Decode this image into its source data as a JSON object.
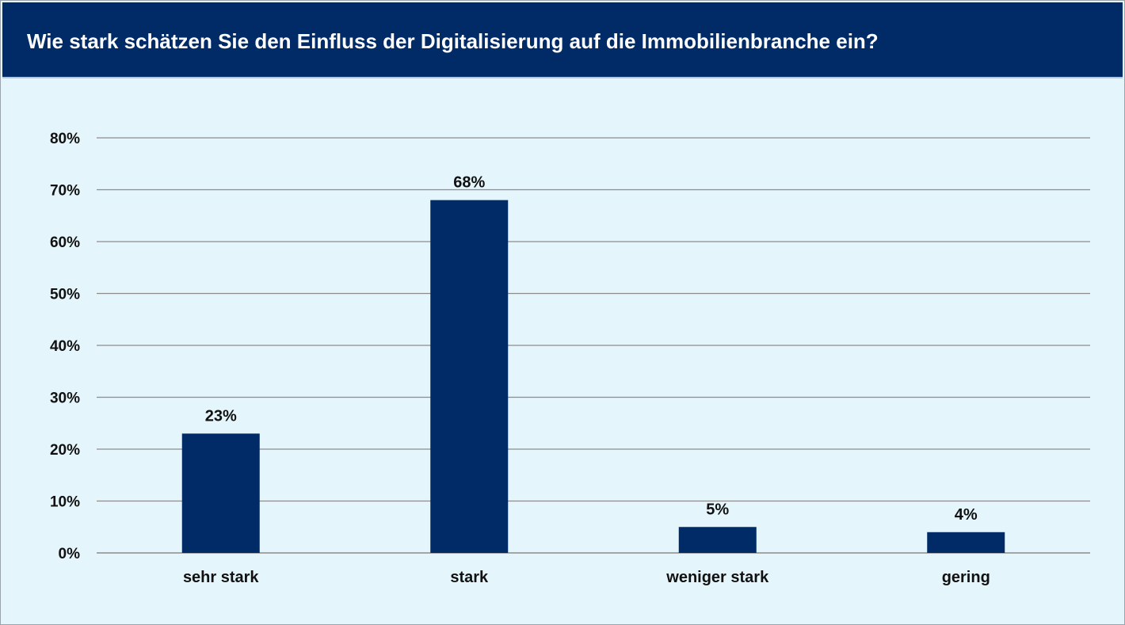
{
  "chart_data": {
    "type": "bar",
    "title": "Wie stark schätzen Sie den Einfluss der Digitalisierung auf die Immobilienbranche ein?",
    "categories": [
      "sehr stark",
      "stark",
      "weniger stark",
      "gering"
    ],
    "values": [
      23,
      68,
      5,
      4
    ],
    "value_labels": [
      "23%",
      "68%",
      "5%",
      "4%"
    ],
    "yticks": [
      0,
      10,
      20,
      30,
      40,
      50,
      60,
      70,
      80
    ],
    "ytick_labels": [
      "0%",
      "10%",
      "20%",
      "30%",
      "40%",
      "50%",
      "60%",
      "70%",
      "80%"
    ],
    "ylim": [
      0,
      80
    ],
    "grid": true,
    "legend": "none",
    "xlabel": "",
    "ylabel": "",
    "colors": {
      "bar": "#002b66",
      "header": "#002b66",
      "background": "#e5f5fc",
      "grid": "#8c8c8c"
    }
  }
}
